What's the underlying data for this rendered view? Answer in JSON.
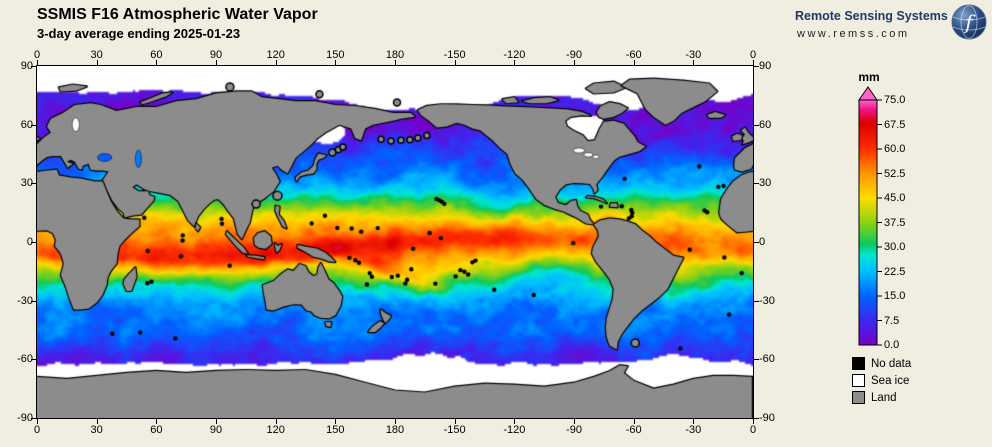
{
  "page": {
    "bg_color": "#F0EDE1"
  },
  "header": {
    "title": "SSMIS F16 Atmospheric Water Vapor",
    "subtitle": "3-day average ending 2025-01-23"
  },
  "branding": {
    "name": "Remote Sensing Systems",
    "url": "www.remss.com",
    "name_color": "#1F3A68"
  },
  "map": {
    "lon_tick_labels": [
      "0",
      "30",
      "60",
      "90",
      "120",
      "150",
      "180",
      "-150",
      "-120",
      "-90",
      "-60",
      "-30",
      "0"
    ],
    "lat_tick_labels": [
      "90",
      "60",
      "30",
      "0",
      "-30",
      "-60",
      "-90"
    ],
    "land_color": "#8C8C8C",
    "sea_ice_color": "#FFFFFF",
    "no_data_color": "#000000"
  },
  "colorbar": {
    "unit": "mm",
    "min": 0,
    "max": 75,
    "tick_labels": [
      "75.0",
      "67.5",
      "60.0",
      "52.5",
      "45.0",
      "37.5",
      "30.0",
      "22.5",
      "15.0",
      "7.5",
      "0.0"
    ],
    "stops": [
      [
        0,
        "#7800C8"
      ],
      [
        7.5,
        "#3C28F0"
      ],
      [
        15,
        "#0064FF"
      ],
      [
        22.5,
        "#00BEFF"
      ],
      [
        27.5,
        "#00E6D2"
      ],
      [
        31,
        "#0FC85A"
      ],
      [
        37.5,
        "#8CD214"
      ],
      [
        45,
        "#FFDC00"
      ],
      [
        52.5,
        "#FF9600"
      ],
      [
        60,
        "#FF2D00"
      ],
      [
        68,
        "#DC0000"
      ],
      [
        72,
        "#F01482"
      ],
      [
        75,
        "#FF64C8"
      ]
    ]
  },
  "legend": [
    {
      "label": "No data",
      "color": "#000000"
    },
    {
      "label": "Sea ice",
      "color": "#FFFFFF"
    },
    {
      "label": "Land",
      "color": "#8C8C8C"
    }
  ]
}
